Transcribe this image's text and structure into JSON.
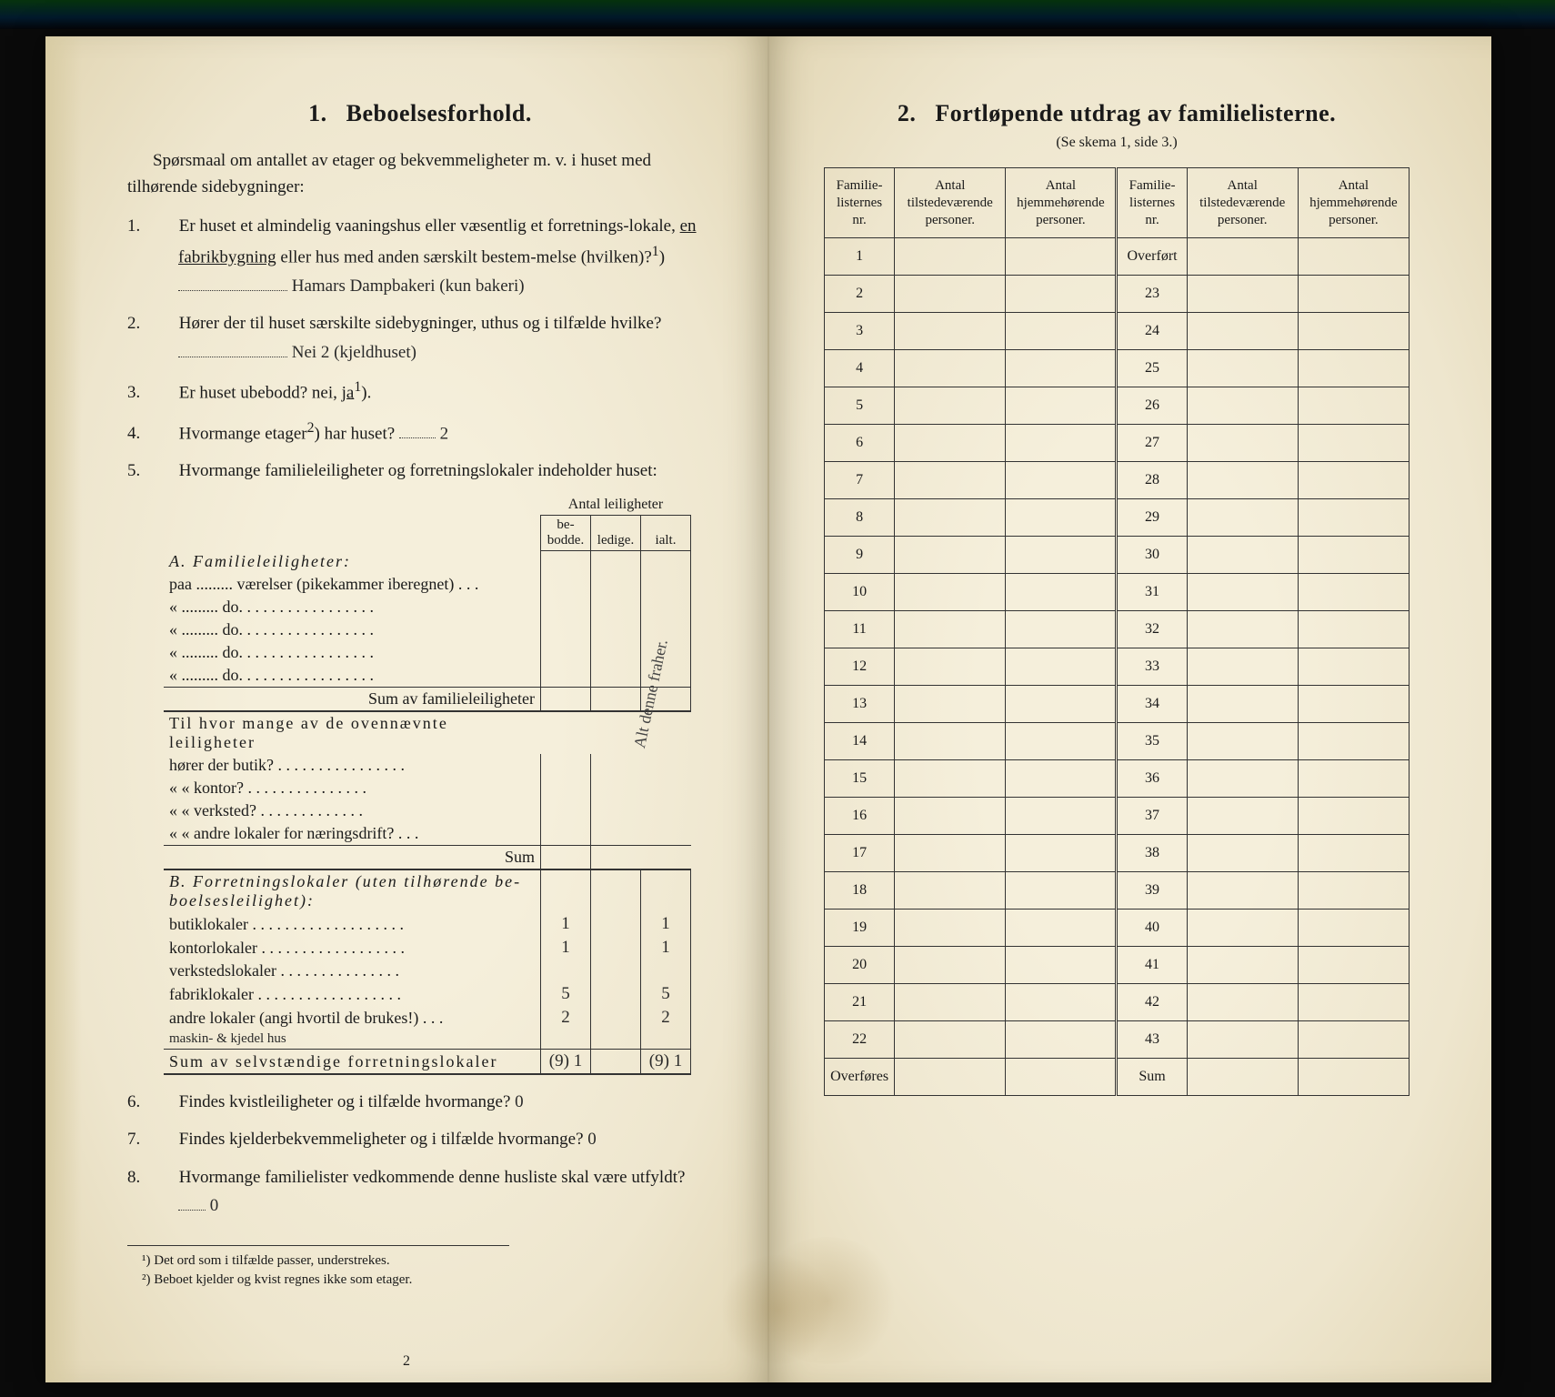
{
  "left": {
    "title_num": "1.",
    "title": "Beboelsesforhold.",
    "intro": "Spørsmaal om antallet av etager og bekvemmeligheter m. v. i huset med tilhørende sidebygninger:",
    "q1": {
      "num": "1.",
      "text_a": "Er huset et almindelig vaaningshus eller væsentlig et forretnings-lokale, ",
      "uline": "en fabrikbygning",
      "text_b": " eller hus med anden særskilt bestem-melse (hvilken)?",
      "sup": "1",
      "hand": "Hamars Dampbakeri (kun bakeri)"
    },
    "q2": {
      "num": "2.",
      "text": "Hører der til huset særskilte sidebygninger, uthus og i tilfælde hvilke?",
      "hand": "Nei 2 (kjeldhuset)"
    },
    "q3": {
      "num": "3.",
      "text": "Er huset ubebodd? nei, ",
      "uline": "ja",
      "sup": "1",
      "after": ")."
    },
    "q4": {
      "num": "4.",
      "text": "Hvormange etager",
      "sup": "2",
      "after": ") har huset?",
      "hand": "2"
    },
    "q5": {
      "num": "5.",
      "text": "Hvormange familieleiligheter og forretningslokaler indeholder huset:"
    },
    "table": {
      "colgroup_label": "Antal leiligheter",
      "cols": [
        "be-\nbodde.",
        "ledige.",
        "ialt."
      ],
      "sectA": "A. Familieleiligheter:",
      "rowA_paa": "paa ......... værelser (pikekammer iberegnet) . . .",
      "rowA_do": "«  .........    do.    . . . . . . . . . . . . . . . .",
      "sumA": "Sum av familieleiligheter",
      "subq_intro": "Til hvor mange av de ovennævnte leiligheter",
      "subq_items": [
        "hører der butik? . . . . . . . . . . . . . . . .",
        "«    «  kontor? . . . . . . . . . . . . . . .",
        "«    «  verksted? . . . . . . . . . . . . .",
        "«    «  andre lokaler for næringsdrift? . . ."
      ],
      "subq_sum": "Sum",
      "sectB": "B. Forretningslokaler (uten tilhørende be-boelsesleilighet):",
      "rowsB": [
        {
          "label": "butiklokaler . . . . . . . . . . . . . . . . . . .",
          "v1": "1",
          "v2": "",
          "v3": "1"
        },
        {
          "label": "kontorlokaler . . . . . . . . . . . . . . . . . .",
          "v1": "1",
          "v2": "",
          "v3": "1"
        },
        {
          "label": "verkstedslokaler . . . . . . . . . . . . . . .",
          "v1": "",
          "v2": "",
          "v3": ""
        },
        {
          "label": "fabriklokaler . . . . . . . . . . . . . . . . . .",
          "v1": "5",
          "v2": "",
          "v3": "5"
        },
        {
          "label": "andre lokaler (angi hvortil de brukes!) . . .",
          "v1": "2",
          "v2": "",
          "v3": "2"
        }
      ],
      "handnote_B": "maskin- & kjedel hus",
      "sumB": "Sum av selvstændige forretningslokaler",
      "sumB_vals": {
        "v1": "(9) 1",
        "v2": "",
        "v3": "(9) 1"
      }
    },
    "q6": {
      "num": "6.",
      "text": "Findes kvistleiligheter og i tilfælde hvormange?",
      "hand": "0"
    },
    "q7": {
      "num": "7.",
      "text": "Findes kjelderbekvemmeligheter og i tilfælde hvormange?",
      "hand": "0"
    },
    "q8": {
      "num": "8.",
      "text": "Hvormange familielister vedkommende denne husliste skal være utfyldt?",
      "hand": "0"
    },
    "margin_hand": "Alt denne fraher.",
    "foot1": "¹) Det ord som i tilfælde passer, understrekes.",
    "foot2": "²) Beboet kjelder og kvist regnes ikke som etager.",
    "pagenum": "2"
  },
  "right": {
    "title_num": "2.",
    "title": "Fortløpende utdrag av familielisterne.",
    "subhead": "(Se skema 1, side 3.)",
    "headers": [
      "Familie-listernes nr.",
      "Antal tilstedeværende personer.",
      "Antal hjemmehørende personer.",
      "Familie-listernes nr.",
      "Antal tilstedeværende personer.",
      "Antal hjemmehørende personer."
    ],
    "left_col": [
      "1",
      "2",
      "3",
      "4",
      "5",
      "6",
      "7",
      "8",
      "9",
      "10",
      "11",
      "12",
      "13",
      "14",
      "15",
      "16",
      "17",
      "18",
      "19",
      "20",
      "21",
      "22",
      "Overføres"
    ],
    "right_col": [
      "Overført",
      "23",
      "24",
      "25",
      "26",
      "27",
      "28",
      "29",
      "30",
      "31",
      "32",
      "33",
      "34",
      "35",
      "36",
      "37",
      "38",
      "39",
      "40",
      "41",
      "42",
      "43",
      "Sum"
    ]
  },
  "colors": {
    "paper": "#f2ecd6",
    "ink": "#1a1a1a",
    "border": "#333333"
  }
}
